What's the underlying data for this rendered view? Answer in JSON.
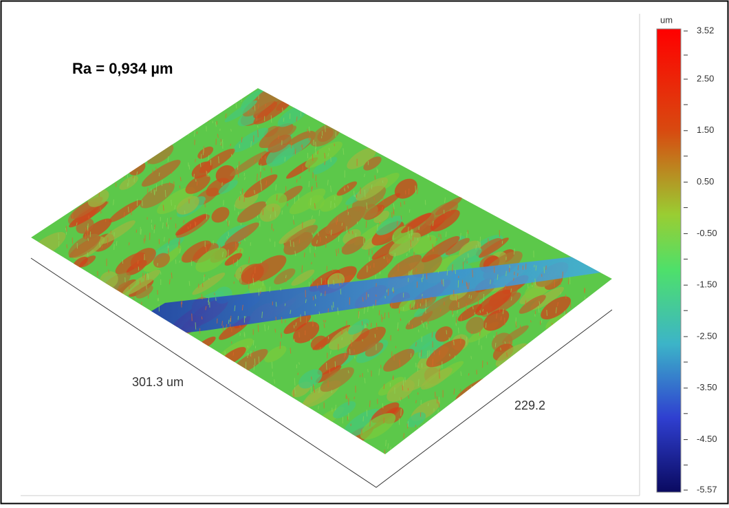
{
  "annotation": "Ra = 0,934 µm",
  "axes": {
    "x_label": "301.3 um",
    "y_label": "229.2"
  },
  "colorbar": {
    "unit": "um",
    "ticks": [
      "3.52",
      "2.50",
      "1.50",
      "0.50",
      "-0.50",
      "-1.50",
      "-2.50",
      "-3.50",
      "-4.50",
      "-5.57"
    ]
  }
}
